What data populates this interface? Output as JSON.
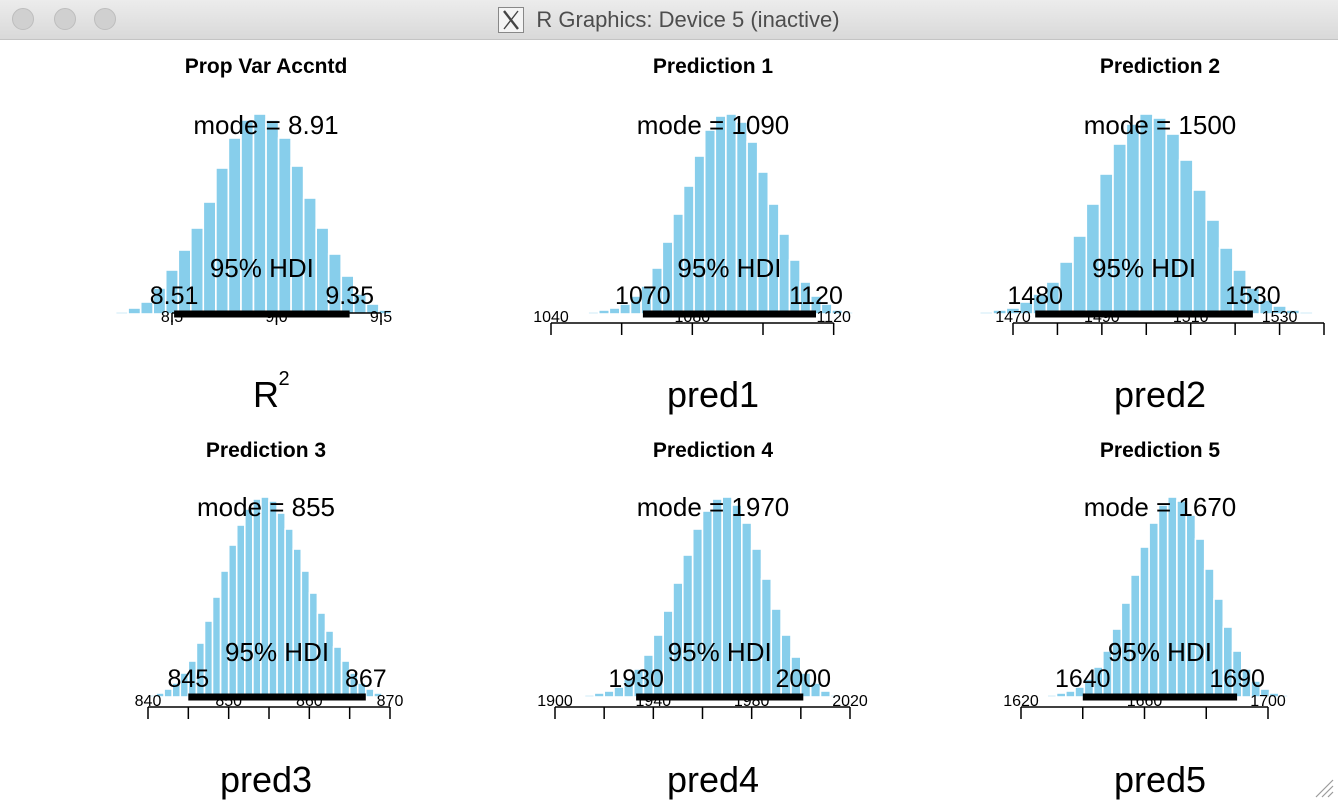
{
  "window": {
    "title": "R Graphics: Device 5 (inactive)",
    "title_icon": "x11-icon",
    "buttons": [
      "close-button",
      "minimize-button",
      "zoom-button"
    ]
  },
  "colors": {
    "bar_fill": "#87ceeb",
    "bar_edge": "#ffffff",
    "hdi_line": "#000000",
    "text": "#000000"
  },
  "chart_data": [
    {
      "type": "bar",
      "title": "Prop Var Accntd",
      "xlabel": "R",
      "xlabel_superscript": "2",
      "mode_label": "mode = 8.91",
      "mode": 8.91,
      "hdi_label": "95% HDI",
      "hdi": [
        8.51,
        9.35
      ],
      "hdi_low_label": "8.51",
      "hdi_high_label": "9.35",
      "xlim": [
        8.5,
        9.5
      ],
      "ticks": [
        8.5,
        9.0,
        9.5
      ],
      "tick_labels": [
        "8.5",
        "9.0",
        "9.5"
      ],
      "bins": [
        8.26,
        8.32,
        8.38,
        8.44,
        8.5,
        8.56,
        8.62,
        8.68,
        8.74,
        8.8,
        8.86,
        8.92,
        8.98,
        9.04,
        9.1,
        9.16,
        9.22,
        9.28,
        9.34,
        9.4,
        9.46,
        9.52
      ],
      "values": [
        0.01,
        0.03,
        0.06,
        0.13,
        0.22,
        0.32,
        0.43,
        0.56,
        0.73,
        0.88,
        0.97,
        1.0,
        0.97,
        0.88,
        0.74,
        0.58,
        0.43,
        0.3,
        0.19,
        0.1,
        0.05,
        0.02
      ]
    },
    {
      "type": "bar",
      "title": "Prediction 1",
      "xlabel": "pred1",
      "mode_label": "mode = 1090",
      "mode": 1090,
      "hdi_label": "95% HDI",
      "hdi": [
        1066,
        1115
      ],
      "hdi_low_label": "1070",
      "hdi_high_label": "1120",
      "xlim": [
        1040,
        1130
      ],
      "ticks": [
        1040,
        1060,
        1080,
        1100,
        1120
      ],
      "tick_labels": [
        "1040",
        "",
        "1080",
        "",
        "1120"
      ],
      "bins": [
        1052,
        1055,
        1058,
        1061,
        1064,
        1067,
        1070,
        1073,
        1076,
        1079,
        1082,
        1085,
        1088,
        1091,
        1094,
        1097,
        1100,
        1103,
        1106,
        1109,
        1112,
        1115,
        1118,
        1121,
        1124
      ],
      "values": [
        0.01,
        0.02,
        0.03,
        0.05,
        0.09,
        0.14,
        0.23,
        0.36,
        0.5,
        0.64,
        0.79,
        0.92,
        0.99,
        1.0,
        0.96,
        0.86,
        0.71,
        0.55,
        0.4,
        0.27,
        0.16,
        0.09,
        0.05,
        0.02,
        0.01
      ]
    },
    {
      "type": "bar",
      "title": "Prediction 2",
      "xlabel": "pred2",
      "mode_label": "mode = 1500",
      "mode": 1500,
      "hdi_label": "95% HDI",
      "hdi": [
        1475,
        1524
      ],
      "hdi_low_label": "1480",
      "hdi_high_label": "1530",
      "xlim": [
        1470,
        1540
      ],
      "ticks": [
        1470,
        1480,
        1490,
        1500,
        1510,
        1520,
        1530,
        1540
      ],
      "tick_labels": [
        "1470",
        "",
        "1490",
        "",
        "1510",
        "",
        "1530",
        ""
      ],
      "bins": [
        1464,
        1467,
        1470,
        1473,
        1476,
        1479,
        1482,
        1485,
        1488,
        1491,
        1494,
        1497,
        1500,
        1503,
        1506,
        1509,
        1512,
        1515,
        1518,
        1521,
        1524,
        1527,
        1530,
        1533,
        1536
      ],
      "values": [
        0.01,
        0.02,
        0.03,
        0.06,
        0.1,
        0.16,
        0.26,
        0.39,
        0.55,
        0.7,
        0.85,
        0.95,
        1.0,
        0.98,
        0.9,
        0.77,
        0.62,
        0.47,
        0.33,
        0.22,
        0.13,
        0.07,
        0.04,
        0.02,
        0.01
      ]
    },
    {
      "type": "bar",
      "title": "Prediction 3",
      "xlabel": "pred3",
      "mode_label": "mode = 855",
      "mode": 855,
      "hdi_label": "95% HDI",
      "hdi": [
        845,
        867
      ],
      "hdi_low_label": "845",
      "hdi_high_label": "867",
      "xlim": [
        840,
        870
      ],
      "ticks": [
        840,
        845,
        850,
        855,
        860,
        865,
        870
      ],
      "tick_labels": [
        "840",
        "",
        "850",
        "",
        "860",
        "",
        "870"
      ],
      "bins": [
        840.5,
        841.5,
        842.5,
        843.5,
        844.5,
        845.5,
        846.5,
        847.5,
        848.5,
        849.5,
        850.5,
        851.5,
        852.5,
        853.5,
        854.5,
        855.5,
        856.5,
        857.5,
        858.5,
        859.5,
        860.5,
        861.5,
        862.5,
        863.5,
        864.5,
        865.5,
        866.5,
        867.5,
        868.5
      ],
      "values": [
        0.01,
        0.02,
        0.04,
        0.07,
        0.12,
        0.18,
        0.27,
        0.38,
        0.5,
        0.63,
        0.76,
        0.86,
        0.94,
        0.99,
        1.0,
        0.98,
        0.92,
        0.84,
        0.74,
        0.63,
        0.52,
        0.42,
        0.33,
        0.25,
        0.18,
        0.12,
        0.07,
        0.04,
        0.02
      ]
    },
    {
      "type": "bar",
      "title": "Prediction 4",
      "xlabel": "pred4",
      "mode_label": "mode = 1970",
      "mode": 1970,
      "hdi_label": "95% HDI",
      "hdi": [
        1933,
        2001
      ],
      "hdi_low_label": "1930",
      "hdi_high_label": "2000",
      "xlim": [
        1900,
        2020
      ],
      "ticks": [
        1900,
        1920,
        1940,
        1960,
        1980,
        2000,
        2020
      ],
      "tick_labels": [
        "1900",
        "",
        "1940",
        "",
        "1980",
        "",
        "2020"
      ],
      "bins": [
        1914,
        1918,
        1922,
        1926,
        1930,
        1934,
        1938,
        1942,
        1946,
        1950,
        1954,
        1958,
        1962,
        1966,
        1970,
        1974,
        1978,
        1982,
        1986,
        1990,
        1994,
        1998,
        2002,
        2006,
        2010,
        2014
      ],
      "values": [
        0.01,
        0.02,
        0.03,
        0.05,
        0.09,
        0.14,
        0.21,
        0.31,
        0.43,
        0.57,
        0.71,
        0.84,
        0.93,
        0.99,
        1.0,
        0.96,
        0.87,
        0.74,
        0.59,
        0.44,
        0.31,
        0.2,
        0.12,
        0.07,
        0.03,
        0.01
      ]
    },
    {
      "type": "bar",
      "title": "Prediction 5",
      "xlabel": "pred5",
      "mode_label": "mode = 1670",
      "mode": 1670,
      "hdi_label": "95% HDI",
      "hdi": [
        1640,
        1690
      ],
      "hdi_low_label": "1640",
      "hdi_high_label": "1690",
      "xlim": [
        1620,
        1700
      ],
      "ticks": [
        1620,
        1640,
        1660,
        1680,
        1700
      ],
      "tick_labels": [
        "1620",
        "",
        "1660",
        "",
        "1700"
      ],
      "bins": [
        1630,
        1633,
        1636,
        1639,
        1642,
        1645,
        1648,
        1651,
        1654,
        1657,
        1660,
        1663,
        1666,
        1669,
        1672,
        1675,
        1678,
        1681,
        1684,
        1687,
        1690,
        1693,
        1696,
        1699,
        1702,
        1705
      ],
      "values": [
        0.01,
        0.02,
        0.03,
        0.05,
        0.09,
        0.15,
        0.23,
        0.34,
        0.47,
        0.61,
        0.75,
        0.87,
        0.96,
        1.0,
        0.98,
        0.91,
        0.79,
        0.64,
        0.49,
        0.35,
        0.23,
        0.14,
        0.08,
        0.04,
        0.02,
        0.01
      ]
    }
  ]
}
